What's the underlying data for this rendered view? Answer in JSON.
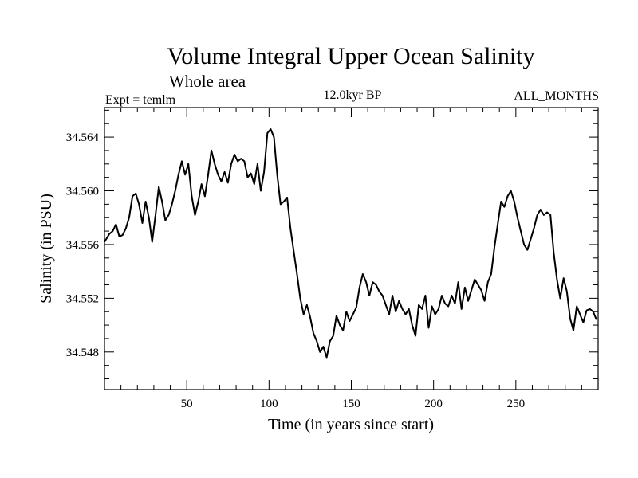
{
  "chart_data": {
    "type": "line",
    "title": "Volume Integral Upper Ocean Salinity",
    "subtitle": "Whole area",
    "experiment_label": "Expt = temlm",
    "period_label": "12.0kyr BP",
    "months_label": "ALL_MONTHS",
    "xlabel": "Time (in years since start)",
    "ylabel": "Salinity (in PSU)",
    "xlim": [
      0,
      300
    ],
    "ylim": [
      34.5452,
      34.5662
    ],
    "x_ticks": [
      50,
      100,
      150,
      200,
      250
    ],
    "x_tick_labels": [
      "50",
      "100",
      "150",
      "200",
      "250"
    ],
    "y_ticks": [
      34.548,
      34.552,
      34.556,
      34.56,
      34.564
    ],
    "y_tick_labels": [
      "34.548",
      "34.552",
      "34.556",
      "34.560",
      "34.564"
    ],
    "grid": false,
    "series": [
      {
        "name": "Salinity",
        "color": "#000000",
        "x": [
          0,
          3,
          5,
          7,
          9,
          11,
          13,
          15,
          17,
          19,
          21,
          23,
          25,
          27,
          29,
          31,
          33,
          35,
          37,
          39,
          41,
          43,
          45,
          47,
          49,
          51,
          53,
          55,
          57,
          59,
          61,
          63,
          65,
          67,
          69,
          71,
          73,
          75,
          77,
          79,
          81,
          83,
          85,
          87,
          89,
          91,
          93,
          95,
          97,
          99,
          101,
          103,
          105,
          107,
          109,
          111,
          113,
          115,
          117,
          119,
          121,
          123,
          125,
          127,
          129,
          131,
          133,
          135,
          137,
          139,
          141,
          143,
          145,
          147,
          149,
          151,
          153,
          155,
          157,
          159,
          161,
          163,
          165,
          167,
          169,
          171,
          173,
          175,
          177,
          179,
          181,
          183,
          185,
          187,
          189,
          191,
          193,
          195,
          197,
          199,
          201,
          203,
          205,
          207,
          209,
          211,
          213,
          215,
          217,
          219,
          221,
          223,
          225,
          227,
          229,
          231,
          233,
          235,
          237,
          239,
          241,
          243,
          245,
          247,
          249,
          251,
          253,
          255,
          257,
          259,
          261,
          263,
          265,
          267,
          269,
          271,
          273,
          275,
          277,
          279,
          281,
          283,
          285,
          287,
          289,
          291,
          293,
          295,
          297,
          299
        ],
        "values": [
          34.5562,
          34.5568,
          34.557,
          34.5575,
          34.5566,
          34.5567,
          34.5572,
          34.558,
          34.5596,
          34.5598,
          34.559,
          34.5576,
          34.5592,
          34.558,
          34.5562,
          34.5582,
          34.5603,
          34.5592,
          34.5578,
          34.5582,
          34.559,
          34.56,
          34.5612,
          34.5622,
          34.5612,
          34.562,
          34.5596,
          34.5582,
          34.5592,
          34.5605,
          34.5596,
          34.5612,
          34.563,
          34.562,
          34.5612,
          34.5607,
          34.5614,
          34.5606,
          34.562,
          34.5627,
          34.5622,
          34.5624,
          34.5622,
          34.561,
          34.5613,
          34.5605,
          34.562,
          34.56,
          34.5614,
          34.5643,
          34.5646,
          34.564,
          34.5612,
          34.559,
          34.5592,
          34.5595,
          34.5572,
          34.5555,
          34.5538,
          34.552,
          34.5508,
          34.5515,
          34.5506,
          34.5494,
          34.5488,
          34.548,
          34.5484,
          34.5476,
          34.5488,
          34.5492,
          34.5507,
          34.55,
          34.5496,
          34.551,
          34.5503,
          34.5508,
          34.5513,
          34.5528,
          34.5538,
          34.5532,
          34.5522,
          34.5532,
          34.553,
          34.5525,
          34.5522,
          34.5515,
          34.5508,
          34.5522,
          34.551,
          34.5518,
          34.5512,
          34.5508,
          34.5512,
          34.55,
          34.5492,
          34.5515,
          34.5512,
          34.5522,
          34.5498,
          34.5514,
          34.5508,
          34.5512,
          34.5522,
          34.5516,
          34.5514,
          34.5522,
          34.5516,
          34.5532,
          34.5512,
          34.5528,
          34.5518,
          34.5526,
          34.5534,
          34.553,
          34.5526,
          34.5518,
          34.5532,
          34.5538,
          34.5558,
          34.5575,
          34.5592,
          34.5588,
          34.5596,
          34.56,
          34.5592,
          34.558,
          34.557,
          34.556,
          34.5556,
          34.5564,
          34.5572,
          34.5582,
          34.5586,
          34.5582,
          34.5584,
          34.5582,
          34.5554,
          34.5534,
          34.552,
          34.5535,
          34.5525,
          34.5505,
          34.5496,
          34.5514,
          34.5508,
          34.5502,
          34.5511,
          34.5512,
          34.551,
          34.5504
        ]
      }
    ]
  }
}
